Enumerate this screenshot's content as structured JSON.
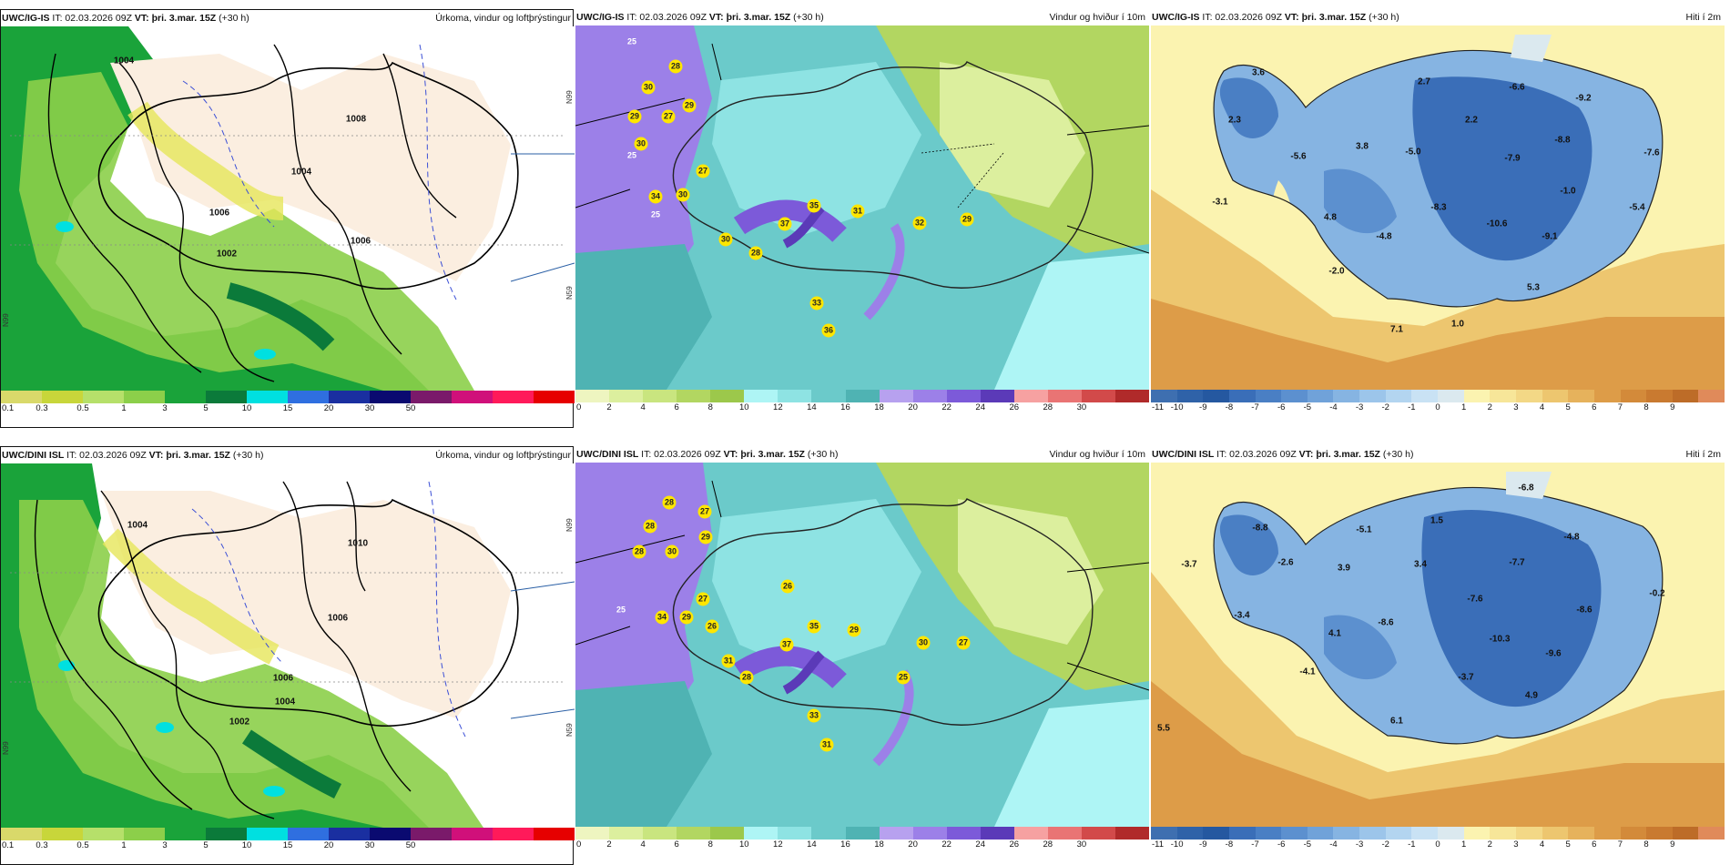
{
  "rows": [
    {
      "model": "UWC/IG-IS",
      "precip": {
        "model": "UWC/IG-IS",
        "it": "IT: 02.03.2026 09Z",
        "vt_label": "VT:",
        "vt_value": "þri. 3.mar. 15Z",
        "lead": "(+30 h)",
        "title": "Úrkoma, vindur og loftþrýstingur",
        "isobars": [
          "1004",
          "1006",
          "1008",
          "1002",
          "1004",
          "1006"
        ],
        "edge_labels": [
          "N99",
          "N59",
          "N99"
        ]
      },
      "wind": {
        "model": "UWC/IG-IS",
        "it": "IT: 02.03.2026 09Z",
        "vt_label": "VT:",
        "vt_value": "þri. 3.mar. 15Z",
        "lead": "(+30 h)",
        "title": "Vindur og hviður í 10m",
        "gusts": [
          "28",
          "30",
          "29",
          "29",
          "27",
          "30",
          "25",
          "27",
          "34",
          "30",
          "25",
          "35",
          "31",
          "37",
          "32",
          "29",
          "30",
          "28",
          "33",
          "36",
          "25"
        ]
      },
      "temp": {
        "model": "UWC/IG-IS",
        "it": "IT: 02.03.2026 09Z",
        "vt_label": "VT:",
        "vt_value": "þri. 3.mar. 15Z",
        "lead": "(+30 h)",
        "title": "Hiti í 2m",
        "values": [
          "3.6",
          "2.7",
          "-6.6",
          "-9.2",
          "2.3",
          "2.2",
          "3.8",
          "-5.6",
          "-5.0",
          "-7.9",
          "-8.8",
          "-7.6",
          "-3.1",
          "-1.0",
          "-8.3",
          "4.8",
          "-10.6",
          "-5.4",
          "-4.8",
          "-9.1",
          "-2.0",
          "5.3",
          "7.1",
          "1.0"
        ]
      }
    },
    {
      "model": "UWC/DINI ISL",
      "precip": {
        "model": "UWC/DINI ISL",
        "it": "IT: 02.03.2026 09Z",
        "vt_label": "VT:",
        "vt_value": "þri. 3.mar. 15Z",
        "lead": "(+30 h)",
        "title": "Úrkoma, vindur og loftþrýstingur",
        "isobars": [
          "1004",
          "1006",
          "1010",
          "1006",
          "1004",
          "1002"
        ],
        "edge_labels": [
          "N99",
          "N59",
          "N99"
        ]
      },
      "wind": {
        "model": "UWC/DINI ISL",
        "it": "IT: 02.03.2026 09Z",
        "vt_label": "VT:",
        "vt_value": "þri. 3.mar. 15Z",
        "lead": "(+30 h)",
        "title": "Vindur og hviður í 10m",
        "gusts": [
          "28",
          "27",
          "28",
          "29",
          "28",
          "30",
          "27",
          "26",
          "34",
          "29",
          "26",
          "35",
          "29",
          "37",
          "30",
          "27",
          "31",
          "28",
          "25",
          "33",
          "31",
          "25"
        ]
      },
      "temp": {
        "model": "UWC/DINI ISL",
        "it": "IT: 02.03.2026 09Z",
        "vt_label": "VT:",
        "vt_value": "þri. 3.mar. 15Z",
        "lead": "(+30 h)",
        "title": "Hiti í 2m",
        "values": [
          "-6.8",
          "-8.8",
          "-5.1",
          "1.5",
          "-4.8",
          "-3.7",
          "-2.6",
          "3.9",
          "3.4",
          "-7.7",
          "-7.6",
          "-3.4",
          "-8.6",
          "-8.6",
          "-0.2",
          "4.1",
          "-10.3",
          "-9.6",
          "-4.1",
          "-3.7",
          "4.9",
          "6.1",
          "5.5"
        ]
      }
    }
  ],
  "scales": {
    "precip": {
      "ticks": [
        "0.1",
        "0.3",
        "0.5",
        "1",
        "3",
        "5",
        "10",
        "15",
        "20",
        "30",
        "50"
      ],
      "colors": [
        "#d9d96a",
        "#c8d63a",
        "#b6e06a",
        "#8ccf4a",
        "#1aa33a",
        "#0b7a3a",
        "#00e0e0",
        "#2f6fe0",
        "#1a2fa0",
        "#0a0a70",
        "#7a1a6a",
        "#d0107a",
        "#ff1a5a",
        "#e60000"
      ]
    },
    "wind": {
      "ticks": [
        "0",
        "2",
        "4",
        "6",
        "8",
        "10",
        "12",
        "14",
        "16",
        "18",
        "20",
        "22",
        "24",
        "26",
        "28",
        "30"
      ],
      "colors": [
        "#eef5c0",
        "#dcef9e",
        "#c9e57f",
        "#b2d661",
        "#9cc84b",
        "#aef5f5",
        "#8ee3e3",
        "#6bcaca",
        "#4fb3b3",
        "#b7a1ef",
        "#9c80e8",
        "#7c5ad9",
        "#5b3ab8",
        "#f6a1a1",
        "#e97474",
        "#d24a4a",
        "#b02a2a"
      ]
    },
    "temp": {
      "ticks": [
        "-11",
        "-10",
        "-9",
        "-8",
        "-7",
        "-6",
        "-5",
        "-4",
        "-3",
        "-2",
        "-1",
        "0",
        "1",
        "2",
        "3",
        "4",
        "5",
        "6",
        "7",
        "8",
        "9"
      ],
      "colors": [
        "#3e6fb0",
        "#2f62a8",
        "#2558a0",
        "#3a6eb8",
        "#4a7fc4",
        "#5c90cf",
        "#70a2d9",
        "#86b4e2",
        "#9cc5ea",
        "#b3d5f0",
        "#c9e2f4",
        "#dbe9ef",
        "#fbf3b0",
        "#f7e699",
        "#f3d886",
        "#edc66f",
        "#e6b25c",
        "#dd9c48",
        "#d38a3a",
        "#c97a30",
        "#bd6c28",
        "#e08a5a"
      ]
    }
  }
}
